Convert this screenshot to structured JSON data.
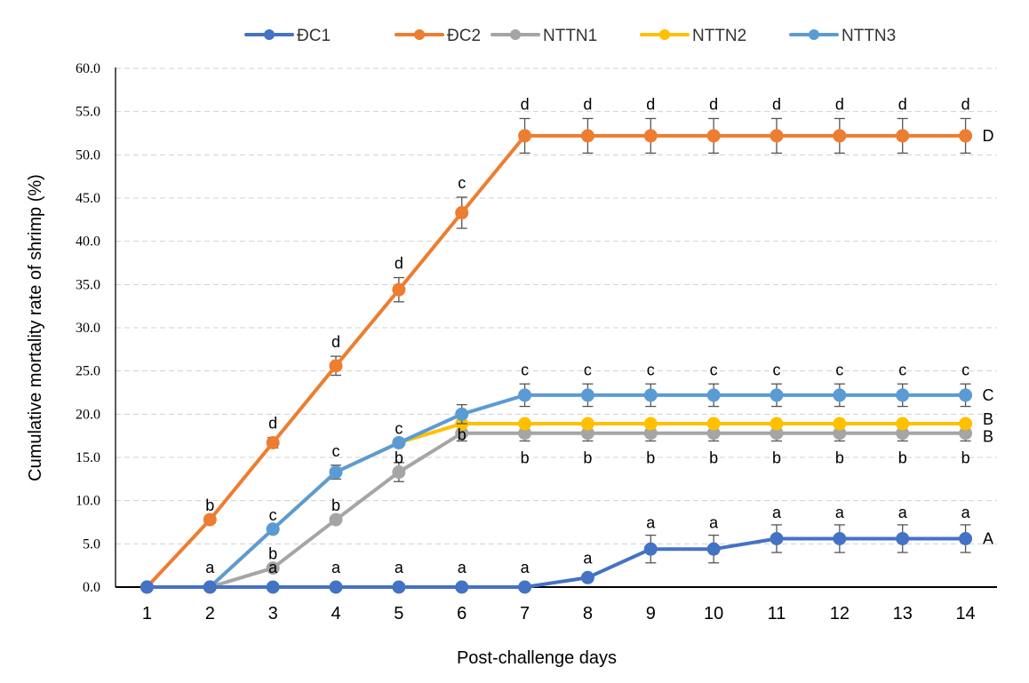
{
  "chart_data": {
    "type": "line",
    "title": "",
    "xlabel": "Post-challenge days",
    "ylabel": "Cumulative mortality rate of shrimp (%)",
    "ylim": [
      0,
      60
    ],
    "yticks": [
      "0.0",
      "5.0",
      "10.0",
      "15.0",
      "20.0",
      "25.0",
      "30.0",
      "35.0",
      "40.0",
      "45.0",
      "50.0",
      "55.0",
      "60.0"
    ],
    "x": [
      1,
      2,
      3,
      4,
      5,
      6,
      7,
      8,
      9,
      10,
      11,
      12,
      13,
      14
    ],
    "x_labels": [
      "1",
      "2",
      "3",
      "4",
      "5",
      "6",
      "7",
      "8",
      "9",
      "10",
      "11",
      "12",
      "13",
      "14"
    ],
    "grid": "horizontal dashed",
    "legend_position": "top",
    "series": [
      {
        "name": "ĐC1",
        "color": "#4472C4",
        "values": [
          0,
          0,
          0,
          0,
          0,
          0,
          0,
          1.1,
          4.4,
          4.4,
          5.6,
          5.6,
          5.6,
          5.6
        ],
        "errors": [
          null,
          null,
          null,
          null,
          null,
          null,
          null,
          null,
          1.6,
          1.6,
          1.6,
          1.6,
          1.6,
          1.6
        ],
        "labels": [
          "",
          "a",
          "a",
          "a",
          "a",
          "a",
          "a",
          "a",
          "a",
          "a",
          "a",
          "a",
          "a",
          "a"
        ],
        "label_side": "above",
        "group_letter": "A"
      },
      {
        "name": "ĐC2",
        "color": "#ED7D31",
        "values": [
          0,
          7.8,
          16.7,
          25.6,
          34.4,
          43.3,
          52.2,
          52.2,
          52.2,
          52.2,
          52.2,
          52.2,
          52.2,
          52.2
        ],
        "errors": [
          null,
          null,
          0.6,
          1.1,
          1.4,
          1.8,
          2.0,
          2.0,
          2.0,
          2.0,
          2.0,
          2.0,
          2.0,
          2.0
        ],
        "labels": [
          "",
          "b",
          "d",
          "d",
          "d",
          "c",
          "d",
          "d",
          "d",
          "d",
          "d",
          "d",
          "d",
          "d"
        ],
        "label_side": "above",
        "group_letter": "D"
      },
      {
        "name": "NTTN1",
        "color": "#A5A5A5",
        "values": [
          0,
          0,
          2.2,
          7.8,
          13.3,
          17.8,
          17.8,
          17.8,
          17.8,
          17.8,
          17.8,
          17.8,
          17.8,
          17.8
        ],
        "errors": [
          null,
          null,
          null,
          null,
          1.1,
          0.9,
          0.9,
          0.9,
          0.9,
          0.9,
          0.9,
          0.9,
          0.9,
          0.9
        ],
        "labels": [
          "",
          "",
          "b",
          "b",
          "b",
          "b",
          "b",
          "b",
          "b",
          "b",
          "b",
          "b",
          "b",
          "b"
        ],
        "label_side": "mixed",
        "group_letter": "B"
      },
      {
        "name": "NTTN2",
        "color": "#FFC000",
        "values": [
          0,
          0,
          6.7,
          13.3,
          16.7,
          18.9,
          18.9,
          18.9,
          18.9,
          18.9,
          18.9,
          18.9,
          18.9,
          18.9
        ],
        "errors": [
          null,
          null,
          null,
          null,
          null,
          null,
          null,
          null,
          null,
          null,
          null,
          null,
          null,
          null
        ],
        "labels": [
          "",
          "",
          "",
          "",
          "",
          "",
          "",
          "",
          "",
          "",
          "",
          "",
          "",
          ""
        ],
        "label_side": "none",
        "group_letter": "B"
      },
      {
        "name": "NTTN3",
        "color": "#5B9BD5",
        "values": [
          0,
          0,
          6.7,
          13.3,
          16.7,
          20.0,
          22.2,
          22.2,
          22.2,
          22.2,
          22.2,
          22.2,
          22.2,
          22.2
        ],
        "errors": [
          null,
          null,
          null,
          0.8,
          null,
          1.1,
          1.3,
          1.3,
          1.3,
          1.3,
          1.3,
          1.3,
          1.3,
          1.3
        ],
        "labels": [
          "",
          "",
          "c",
          "c",
          "c",
          "",
          "c",
          "c",
          "c",
          "c",
          "c",
          "c",
          "c",
          "c"
        ],
        "label_side": "above",
        "group_letter": "C"
      }
    ]
  }
}
